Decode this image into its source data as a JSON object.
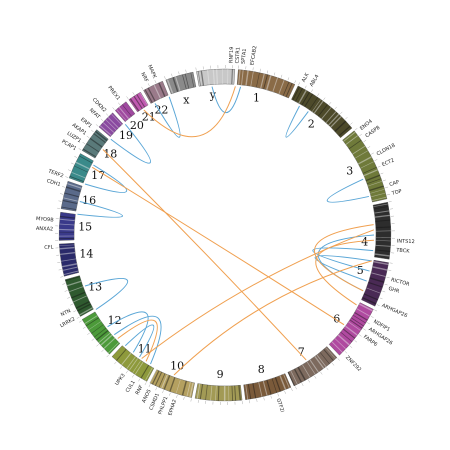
{
  "chromosomes": [
    "1",
    "2",
    "3",
    "4",
    "5",
    "6",
    "7",
    "8",
    "9",
    "10",
    "11",
    "12",
    "13",
    "14",
    "15",
    "16",
    "17",
    "18",
    "19",
    "20",
    "21",
    "22",
    "x",
    "y"
  ],
  "genes": [
    "RNF19",
    "CSTR1",
    "SPTA1",
    "EFCAB2",
    "ALK",
    "ABL4",
    "ENO4",
    "CASP8",
    "CLDN18",
    "ECT2",
    "CAP",
    "TOP",
    "INTS12",
    "TBCK",
    "RICTOR",
    "GHR",
    "ARHGAP26",
    "NDFIP1",
    "ARHGAP26",
    "FARP6",
    "ZNF292",
    "GTF2I",
    "EPHA2",
    "PHLPP1",
    "CSMD1",
    "ANO5",
    "RNF",
    "CUL1",
    "UPK3",
    "LRRK2",
    "NTN",
    "CFL",
    "ANXA2",
    "MYO9B",
    "CDH1",
    "TERF2",
    "PCAP1",
    "LUZP1",
    "AKAP1",
    "ERP1",
    "NFAT",
    "CDKN2",
    "PREX1",
    "NRF",
    "MAPK"
  ]
}
